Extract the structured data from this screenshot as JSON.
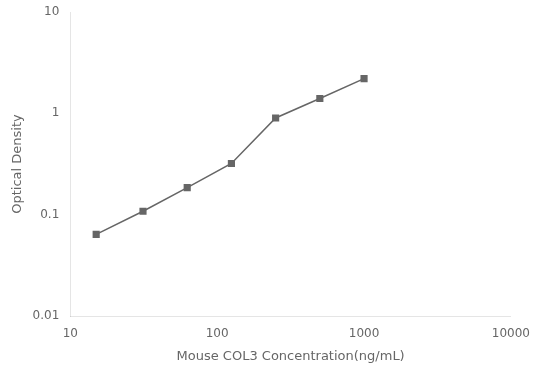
{
  "chart_data": {
    "type": "line",
    "x": [
      15,
      31.25,
      62.5,
      125,
      250,
      500,
      1000
    ],
    "values": [
      0.064,
      0.108,
      0.185,
      0.32,
      0.9,
      1.4,
      2.2
    ],
    "xlabel": "Mouse COL3 Concentration(ng/mL)",
    "ylabel": "Optical Density",
    "xlim": [
      10,
      10000
    ],
    "ylim": [
      0.01,
      10
    ],
    "xticks": [
      10,
      100,
      1000,
      10000
    ],
    "yticks": [
      0.01,
      0.1,
      1,
      10
    ],
    "log": true,
    "grid": false,
    "color": "#666666",
    "marker": "square"
  }
}
